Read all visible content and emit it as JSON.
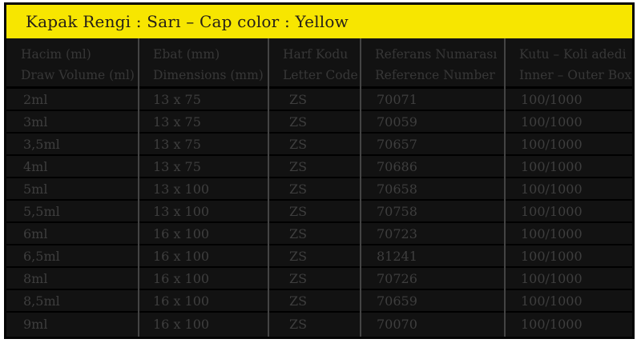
{
  "title_bar": {
    "text": "Kapak Rengi : Sarı – Cap color : Yellow"
  },
  "table": {
    "columns": [
      {
        "id": "volume",
        "line1": "Hacim (ml)",
        "line2": "Draw Volume (ml)"
      },
      {
        "id": "dimensions",
        "line1": "Ebat (mm)",
        "line2": "Dimensions (mm)"
      },
      {
        "id": "letter-code",
        "line1": "Harf Kodu",
        "line2": "Letter Code"
      },
      {
        "id": "reference",
        "line1": "Referans Numarası",
        "line2": "Reference Number"
      },
      {
        "id": "box-count",
        "line1": "Kutu – Koli adedi",
        "line2": "Inner – Outer Box"
      }
    ],
    "rows": [
      [
        "2ml",
        "13 x 75",
        "ZS",
        "70071",
        "100/1000"
      ],
      [
        "3ml",
        "13 x 75",
        "ZS",
        "70059",
        "100/1000"
      ],
      [
        "3,5ml",
        "13 x 75",
        "ZS",
        "70657",
        "100/1000"
      ],
      [
        "4ml",
        "13 x 75",
        "ZS",
        "70686",
        "100/1000"
      ],
      [
        "5ml",
        "13 x 100",
        "ZS",
        "70658",
        "100/1000"
      ],
      [
        "5,5ml",
        "13 x 100",
        "ZS",
        "70758",
        "100/1000"
      ],
      [
        "6ml",
        "16 x 100",
        "ZS",
        "70723",
        "100/1000"
      ],
      [
        "6,5ml",
        "16 x 100",
        "ZS",
        "81241",
        "100/1000"
      ],
      [
        "8ml",
        "16 x 100",
        "ZS",
        "70726",
        "100/1000"
      ],
      [
        "8,5ml",
        "16 x 100",
        "ZS",
        "70659",
        "100/1000"
      ],
      [
        "9ml",
        "16 x 100",
        "ZS",
        "70070",
        "100/1000"
      ]
    ]
  },
  "colors": {
    "cap_color_band": "#f7e600",
    "table_background": "#121212",
    "table_text": "#3e3e3e",
    "column_divider": "#444444",
    "row_separator": "#000000",
    "title_text": "#262018"
  }
}
